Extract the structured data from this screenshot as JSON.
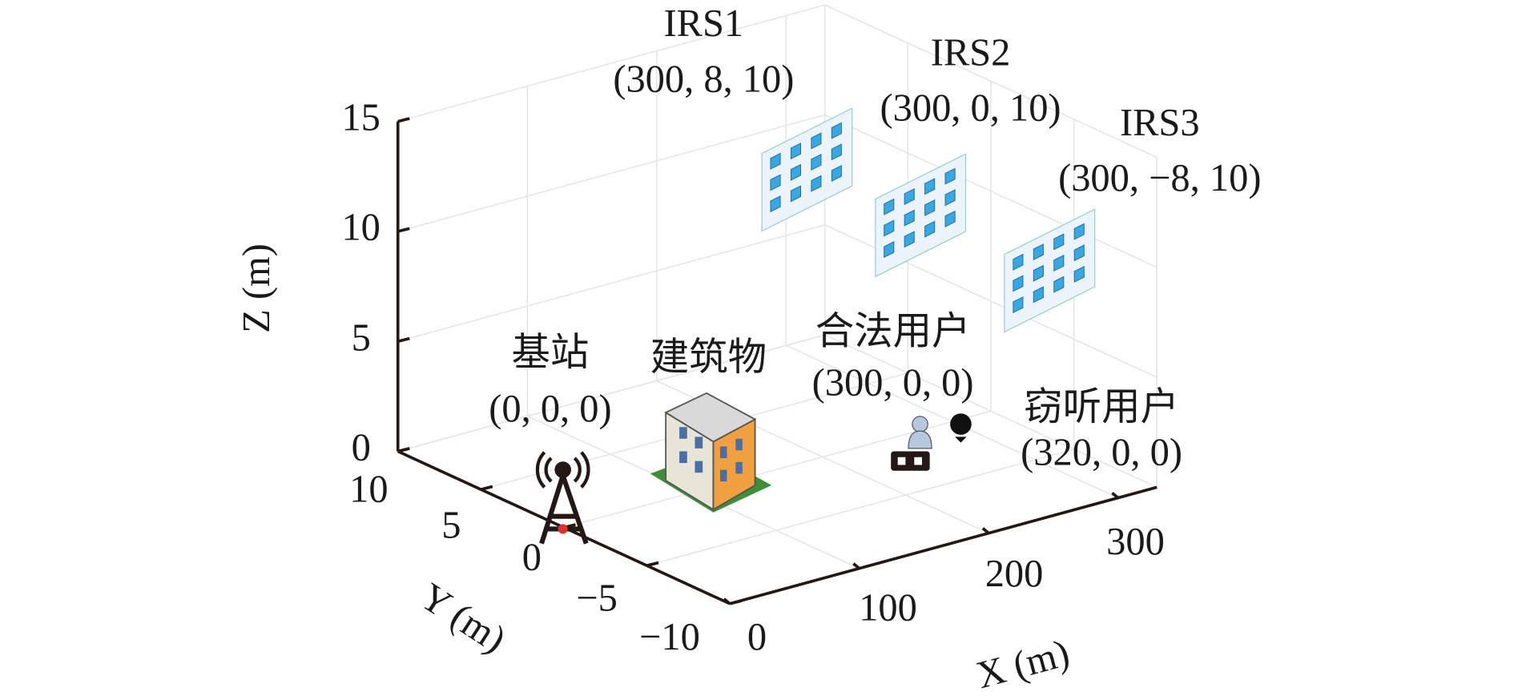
{
  "axes": {
    "x": {
      "label": "X (m)",
      "ticks": [
        "0",
        "100",
        "200",
        "300"
      ]
    },
    "y": {
      "label": "Y (m)",
      "ticks": [
        "10",
        "5",
        "0",
        "−5",
        "−10"
      ]
    },
    "z": {
      "label": "Z (m)",
      "ticks": [
        "0",
        "5",
        "10",
        "15"
      ]
    }
  },
  "nodes": [
    {
      "label": "IRS1",
      "coords": "(300, 8, 10)"
    },
    {
      "label": "IRS2",
      "coords": "(300, 0, 10)"
    },
    {
      "label": "IRS3",
      "coords": "(300, −8, 10)"
    },
    {
      "label": "基站",
      "coords": "(0, 0, 0)"
    },
    {
      "label": "建筑物"
    },
    {
      "label": "合法用户",
      "coords": "(300, 0, 0)"
    },
    {
      "label": "窃听用户",
      "coords": "(320, 0, 0)"
    }
  ]
}
